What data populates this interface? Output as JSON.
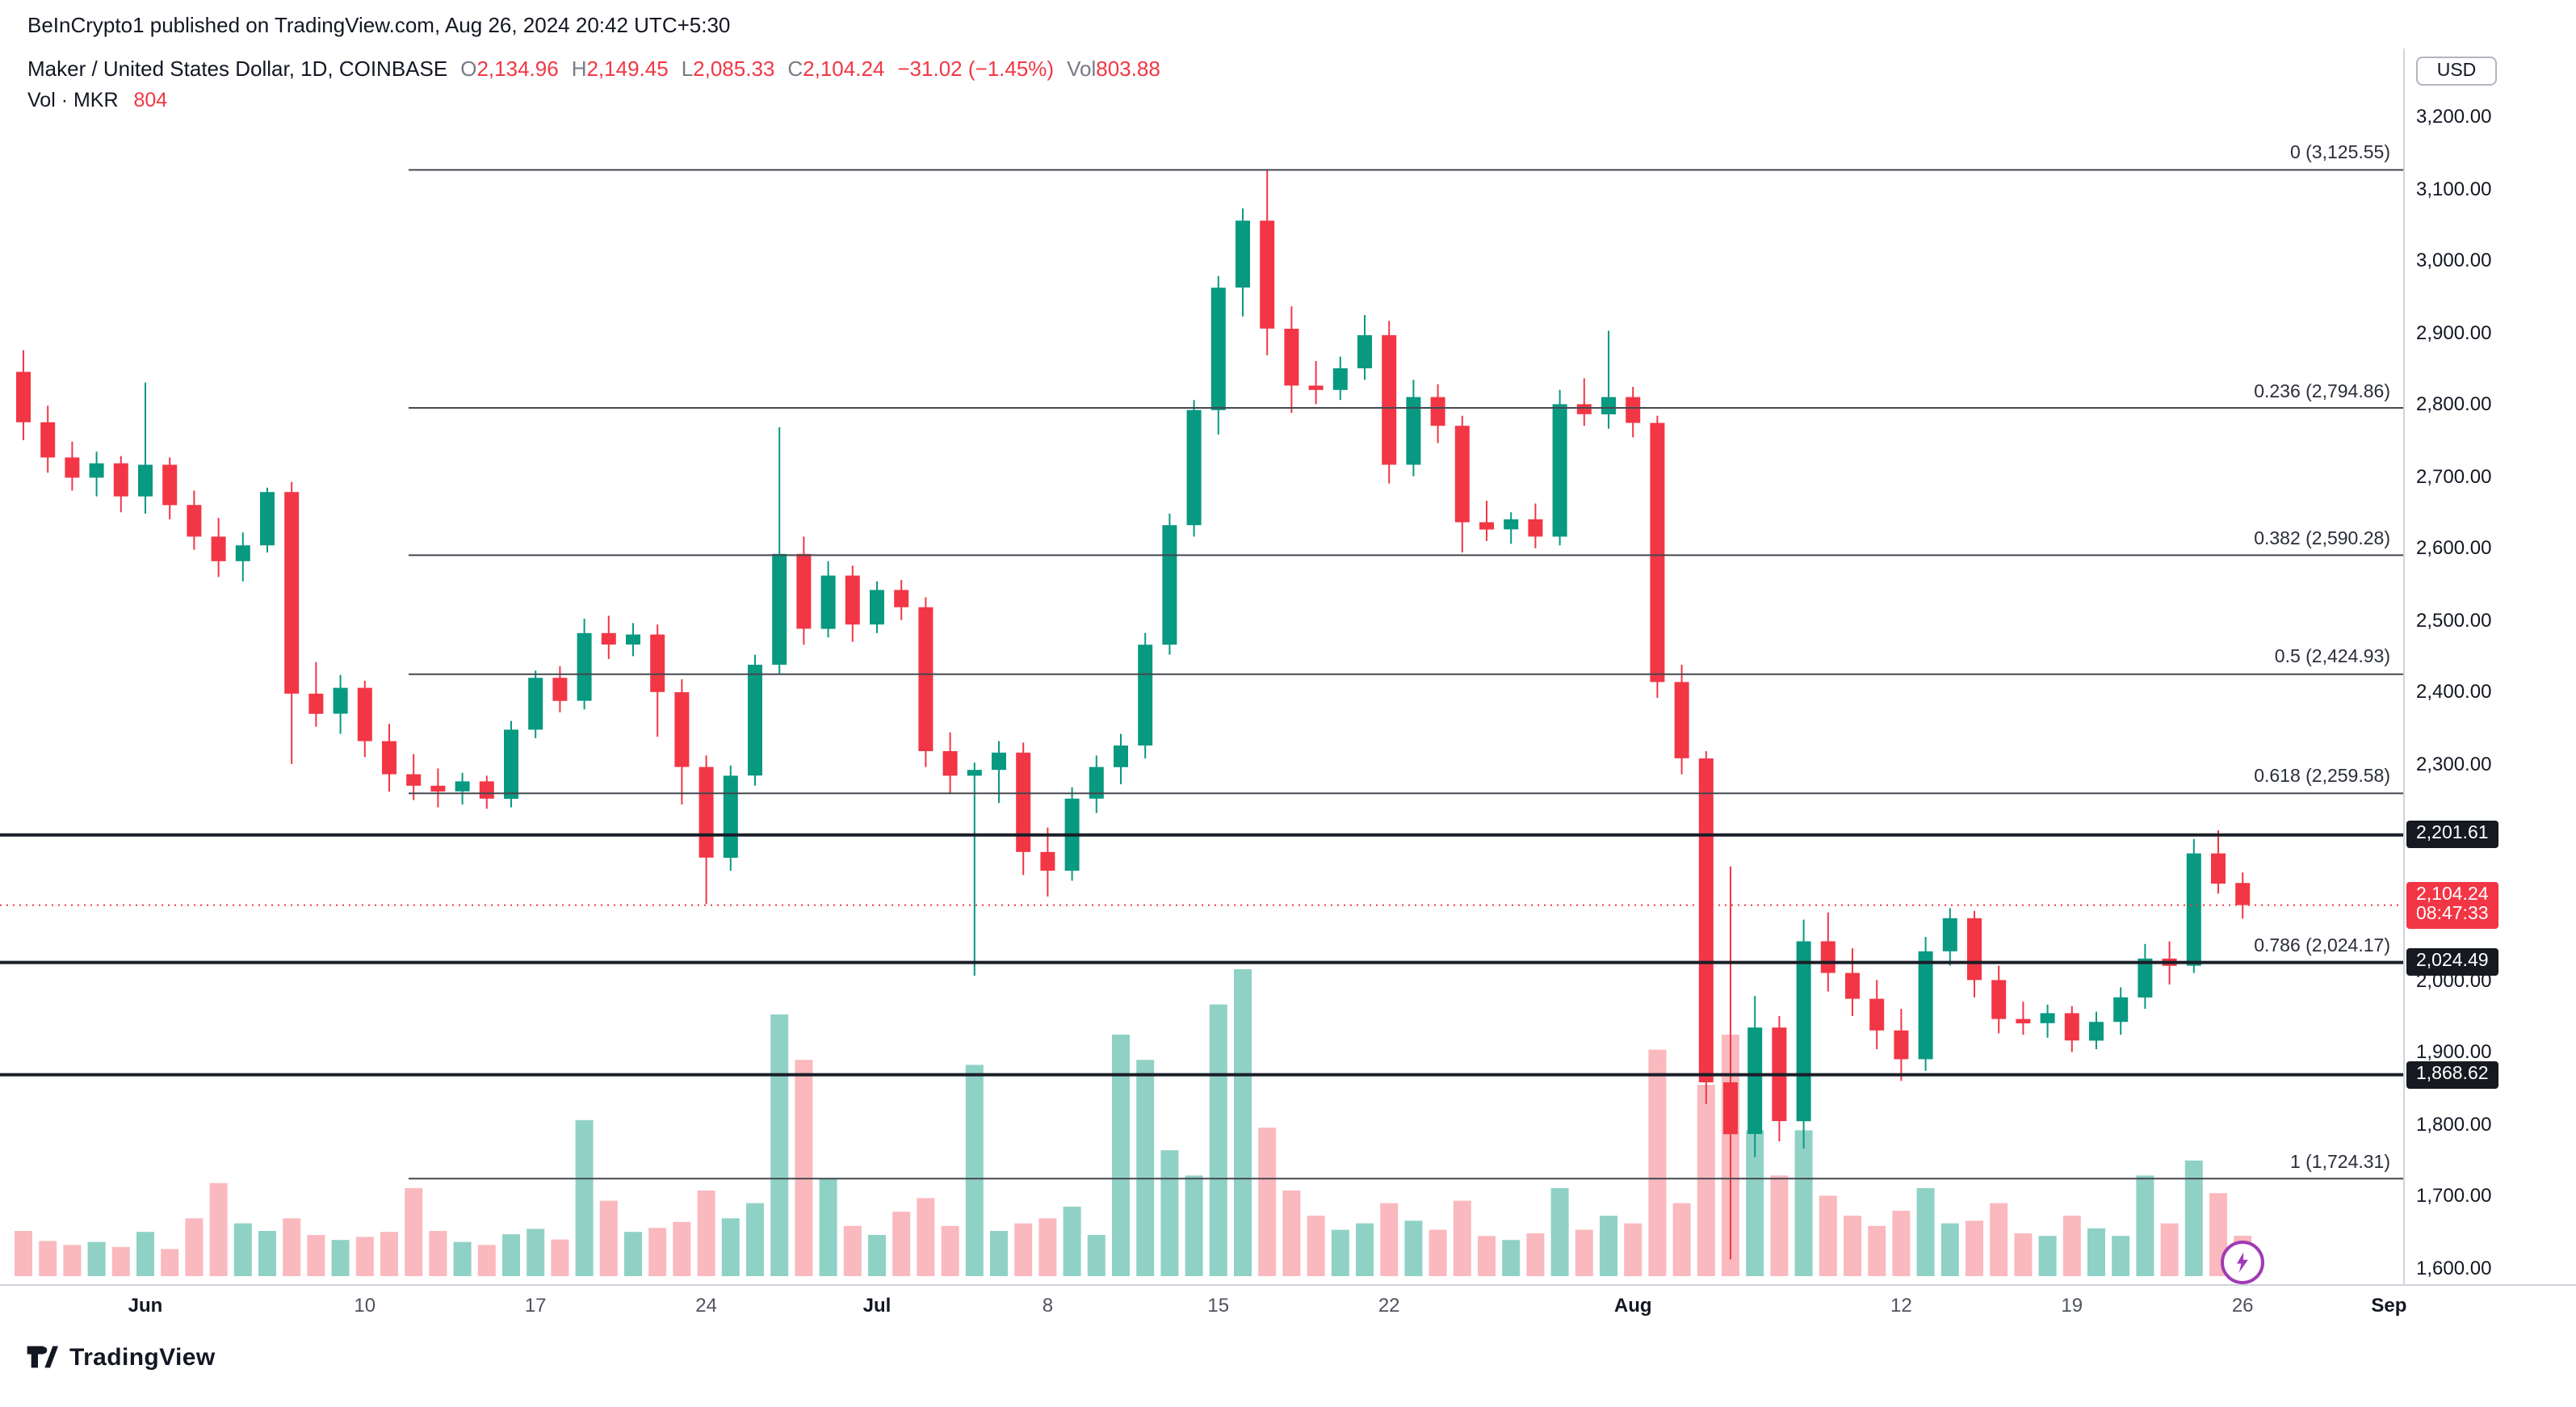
{
  "attribution": "BeInCrypto1 published on TradingView.com, Aug 26, 2024 20:42 UTC+5:30",
  "legend": {
    "title": "Maker / United States Dollar, 1D, COINBASE",
    "o_label": "O",
    "o": "2,134.96",
    "h_label": "H",
    "h": "2,149.45",
    "l_label": "L",
    "l": "2,085.33",
    "c_label": "C",
    "c": "2,104.24",
    "change": "−31.02 (−1.45%)",
    "vol_label": "Vol",
    "vol": "803.88",
    "indicator": "Vol · MKR",
    "indicator_value": "804"
  },
  "axis": {
    "currency": "USD"
  },
  "footer": {
    "brand": "TradingView"
  },
  "colors": {
    "up": "#089981",
    "down": "#F23645",
    "vol_up": "rgba(8,153,129,0.45)",
    "vol_down": "rgba(242,54,69,0.35)",
    "text": "#131722",
    "muted": "#787B86",
    "axis_border": "#D1D4DC",
    "drawing_line": "#44484F",
    "marker_purple": "#A03BB5"
  },
  "chart_data": {
    "type": "candlestick",
    "title": "Maker / United States Dollar, 1D, COINBASE",
    "symbol": "MKR/USD",
    "interval": "1D",
    "exchange": "COINBASE",
    "last": {
      "open": 2134.96,
      "high": 2149.45,
      "low": 2085.33,
      "close": 2104.24,
      "change": -31.02,
      "change_pct": -1.45,
      "volume": 803.88
    },
    "price_axis": {
      "currency": "USD",
      "min": 1600,
      "max": 3200,
      "step": 100,
      "visible_ticks": [
        "3,200.00",
        "3,100.00",
        "3,000.00",
        "2,900.00",
        "2,800.00",
        "2,700.00",
        "2,600.00",
        "2,500.00",
        "2,400.00",
        "2,300.00",
        "2,000.00",
        "1,900.00",
        "1,800.00",
        "1,700.00",
        "1,600.00"
      ]
    },
    "time_axis": {
      "ticks": [
        {
          "label": "Jun",
          "i": 5,
          "month": true
        },
        {
          "label": "10",
          "i": 14
        },
        {
          "label": "17",
          "i": 21
        },
        {
          "label": "24",
          "i": 28
        },
        {
          "label": "Jul",
          "i": 35,
          "month": true
        },
        {
          "label": "8",
          "i": 42
        },
        {
          "label": "15",
          "i": 49
        },
        {
          "label": "22",
          "i": 56
        },
        {
          "label": "Aug",
          "i": 66,
          "month": true
        },
        {
          "label": "12",
          "i": 77
        },
        {
          "label": "19",
          "i": 84
        },
        {
          "label": "26",
          "i": 91
        },
        {
          "label": "Sep",
          "i": 97,
          "month": true
        }
      ]
    },
    "fib_retracement": [
      {
        "label": "0 (3,125.55)",
        "price": 3125.55
      },
      {
        "label": "0.236 (2,794.86)",
        "price": 2794.86
      },
      {
        "label": "0.382 (2,590.28)",
        "price": 2590.28
      },
      {
        "label": "0.5 (2,424.93)",
        "price": 2424.93
      },
      {
        "label": "0.618 (2,259.58)",
        "price": 2259.58
      },
      {
        "label": "0.786 (2,024.17)",
        "price": 2024.17
      },
      {
        "label": "1 (1,724.31)",
        "price": 1724.31
      }
    ],
    "horizontal_lines": [
      {
        "label": "2,201.61",
        "price": 2201.61
      },
      {
        "label": "2,024.49",
        "price": 2024.49
      },
      {
        "label": "1,868.62",
        "price": 1868.62
      }
    ],
    "current_price": {
      "price": 2104.24,
      "label": "2,104.24",
      "countdown": "08:47:33"
    },
    "candles": [
      [
        2845,
        2875,
        2750,
        2775,
        900
      ],
      [
        2775,
        2798,
        2705,
        2726,
        700
      ],
      [
        2726,
        2748,
        2680,
        2698,
        620
      ],
      [
        2698,
        2734,
        2672,
        2718,
        680
      ],
      [
        2718,
        2728,
        2650,
        2672,
        580
      ],
      [
        2672,
        2830,
        2648,
        2716,
        880
      ],
      [
        2716,
        2726,
        2640,
        2660,
        540
      ],
      [
        2660,
        2680,
        2598,
        2616,
        1150
      ],
      [
        2616,
        2642,
        2560,
        2582,
        1850
      ],
      [
        2582,
        2622,
        2554,
        2604,
        1050
      ],
      [
        2604,
        2684,
        2594,
        2678,
        900
      ],
      [
        2678,
        2692,
        2300,
        2398,
        1150
      ],
      [
        2398,
        2442,
        2352,
        2370,
        820
      ],
      [
        2370,
        2424,
        2342,
        2406,
        720
      ],
      [
        2406,
        2416,
        2310,
        2332,
        780
      ],
      [
        2332,
        2356,
        2262,
        2286,
        880
      ],
      [
        2286,
        2314,
        2250,
        2270,
        1750
      ],
      [
        2270,
        2294,
        2240,
        2262,
        900
      ],
      [
        2262,
        2288,
        2244,
        2276,
        680
      ],
      [
        2276,
        2284,
        2238,
        2252,
        620
      ],
      [
        2252,
        2360,
        2240,
        2348,
        830
      ],
      [
        2348,
        2430,
        2336,
        2420,
        940
      ],
      [
        2420,
        2436,
        2372,
        2388,
        730
      ],
      [
        2388,
        2502,
        2376,
        2482,
        3100
      ],
      [
        2482,
        2506,
        2446,
        2466,
        1500
      ],
      [
        2466,
        2496,
        2450,
        2480,
        880
      ],
      [
        2480,
        2494,
        2338,
        2400,
        960
      ],
      [
        2400,
        2418,
        2244,
        2296,
        1080
      ],
      [
        2296,
        2312,
        2106,
        2170,
        1700
      ],
      [
        2170,
        2298,
        2152,
        2284,
        1150
      ],
      [
        2284,
        2452,
        2270,
        2438,
        1450
      ],
      [
        2438,
        2768,
        2426,
        2592,
        5200
      ],
      [
        2592,
        2616,
        2466,
        2488,
        4300
      ],
      [
        2488,
        2582,
        2476,
        2562,
        1950
      ],
      [
        2562,
        2576,
        2470,
        2494,
        1000
      ],
      [
        2494,
        2554,
        2482,
        2542,
        820
      ],
      [
        2542,
        2556,
        2500,
        2518,
        1280
      ],
      [
        2518,
        2532,
        2296,
        2318,
        1550
      ],
      [
        2318,
        2344,
        2260,
        2284,
        1000
      ],
      [
        2284,
        2302,
        2006,
        2292,
        4200
      ],
      [
        2292,
        2332,
        2246,
        2316,
        900
      ],
      [
        2316,
        2330,
        2146,
        2178,
        1050
      ],
      [
        2178,
        2212,
        2116,
        2152,
        1150
      ],
      [
        2152,
        2268,
        2138,
        2252,
        1380
      ],
      [
        2252,
        2312,
        2232,
        2296,
        820
      ],
      [
        2296,
        2342,
        2272,
        2326,
        4800
      ],
      [
        2326,
        2482,
        2308,
        2466,
        4300
      ],
      [
        2466,
        2648,
        2452,
        2632,
        2500
      ],
      [
        2632,
        2806,
        2616,
        2792,
        2000
      ],
      [
        2792,
        2978,
        2758,
        2962,
        5400
      ],
      [
        2962,
        3072,
        2922,
        3055,
        6100
      ],
      [
        3055,
        3125,
        2868,
        2905,
        2950
      ],
      [
        2905,
        2936,
        2788,
        2826,
        1700
      ],
      [
        2826,
        2860,
        2800,
        2820,
        1200
      ],
      [
        2820,
        2866,
        2806,
        2850,
        920
      ],
      [
        2850,
        2924,
        2834,
        2896,
        1050
      ],
      [
        2896,
        2916,
        2690,
        2716,
        1450
      ],
      [
        2716,
        2834,
        2700,
        2810,
        1100
      ],
      [
        2810,
        2828,
        2746,
        2770,
        920
      ],
      [
        2770,
        2784,
        2594,
        2636,
        1500
      ],
      [
        2636,
        2666,
        2610,
        2626,
        800
      ],
      [
        2626,
        2650,
        2606,
        2640,
        720
      ],
      [
        2640,
        2662,
        2600,
        2616,
        850
      ],
      [
        2616,
        2820,
        2604,
        2800,
        1750
      ],
      [
        2800,
        2836,
        2770,
        2786,
        920
      ],
      [
        2786,
        2902,
        2766,
        2810,
        1200
      ],
      [
        2810,
        2824,
        2754,
        2774,
        1050
      ],
      [
        2774,
        2784,
        2392,
        2414,
        4500
      ],
      [
        2414,
        2438,
        2286,
        2308,
        1450
      ],
      [
        2308,
        2318,
        1828,
        1858,
        3800
      ],
      [
        1858,
        2158,
        1612,
        1786,
        4800
      ],
      [
        1786,
        1978,
        1754,
        1934,
        2900
      ],
      [
        1934,
        1950,
        1776,
        1804,
        2000
      ],
      [
        1804,
        2084,
        1766,
        2054,
        2900
      ],
      [
        2054,
        2094,
        1984,
        2010,
        1600
      ],
      [
        2010,
        2044,
        1950,
        1974,
        1200
      ],
      [
        1974,
        2000,
        1904,
        1930,
        1000
      ],
      [
        1930,
        1960,
        1860,
        1890,
        1300
      ],
      [
        1890,
        2060,
        1874,
        2040,
        1750
      ],
      [
        2040,
        2100,
        2020,
        2086,
        1050
      ],
      [
        2086,
        2096,
        1976,
        2000,
        1100
      ],
      [
        2000,
        2020,
        1926,
        1946,
        1450
      ],
      [
        1946,
        1970,
        1924,
        1940,
        850
      ],
      [
        1940,
        1966,
        1920,
        1954,
        800
      ],
      [
        1954,
        1964,
        1900,
        1916,
        1200
      ],
      [
        1916,
        1956,
        1904,
        1942,
        950
      ],
      [
        1942,
        1990,
        1924,
        1976,
        800
      ],
      [
        1976,
        2050,
        1960,
        2030,
        2000
      ],
      [
        2030,
        2054,
        1994,
        2020,
        1050
      ],
      [
        2020,
        2196,
        2010,
        2176,
        2300
      ],
      [
        2176,
        2208,
        2120,
        2134,
        1650
      ],
      [
        2134.96,
        2149.45,
        2085.33,
        2104.24,
        804
      ]
    ]
  }
}
